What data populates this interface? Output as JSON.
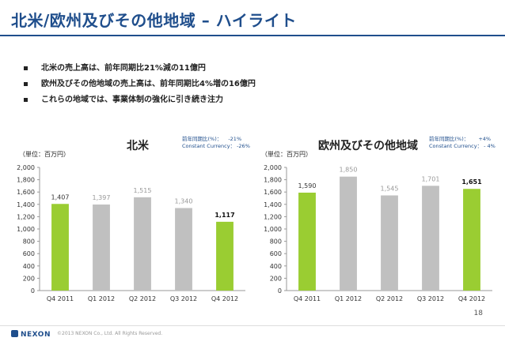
{
  "slide": {
    "title": "北米/欧州及びその他地域 – ハイライト",
    "bullets": [
      "北米の売上高は、前年同期比21%減の11億円",
      "欧州及びその他地域の売上高は、前年同期比4%増の16億円",
      "これらの地域では、事業体制の強化に引き続き注力"
    ],
    "page_number": "18",
    "logo_text": "NEXON",
    "copyright": "©2013 NEXON Co., Ltd. All Rights Reserved."
  },
  "colors": {
    "accent": "#9acd32",
    "bar_grey": "#c0c0c0",
    "title_blue": "#1f4e8c"
  },
  "chart_data": [
    {
      "type": "bar",
      "title": "北米",
      "unit_label": "（単位：百万円）",
      "yoy_label": "前年同期比(%)：",
      "yoy_value": "-21%",
      "cc_label": "Constant Currency：",
      "cc_value": "-26%",
      "categories": [
        "Q4 2011",
        "Q1 2012",
        "Q2 2012",
        "Q3 2012",
        "Q4 2012"
      ],
      "values": [
        1407,
        1397,
        1515,
        1340,
        1117
      ],
      "value_labels": [
        "1,407",
        "1,397",
        "1,515",
        "1,340",
        "1,117"
      ],
      "highlight": [
        true,
        false,
        false,
        false,
        true
      ],
      "bold_label": [
        false,
        false,
        false,
        false,
        true
      ],
      "ylim": [
        0,
        2000
      ],
      "yticks": [
        "0",
        "200",
        "400",
        "600",
        "800",
        "1,000",
        "1,200",
        "1,400",
        "1,600",
        "1,800",
        "2,000"
      ],
      "ytick_values": [
        0,
        200,
        400,
        600,
        800,
        1000,
        1200,
        1400,
        1600,
        1800,
        2000
      ]
    },
    {
      "type": "bar",
      "title": "欧州及びその他地域",
      "unit_label": "（単位：百万円）",
      "yoy_label": "前年同期比(%)：",
      "yoy_value": "+4%",
      "cc_label": "Constant Currency：",
      "cc_value": "- 4%",
      "categories": [
        "Q4 2011",
        "Q1 2012",
        "Q2 2012",
        "Q3 2012",
        "Q4 2012"
      ],
      "values": [
        1590,
        1850,
        1545,
        1701,
        1651
      ],
      "value_labels": [
        "1,590",
        "1,850",
        "1,545",
        "1,701",
        "1,651"
      ],
      "highlight": [
        true,
        false,
        false,
        false,
        true
      ],
      "bold_label": [
        false,
        false,
        false,
        false,
        true
      ],
      "ylim": [
        0,
        2000
      ],
      "yticks": [
        "0",
        "200",
        "400",
        "600",
        "800",
        "1,000",
        "1,200",
        "1,400",
        "1,600",
        "1,800",
        "2,000"
      ],
      "ytick_values": [
        0,
        200,
        400,
        600,
        800,
        1000,
        1200,
        1400,
        1600,
        1800,
        2000
      ]
    }
  ]
}
